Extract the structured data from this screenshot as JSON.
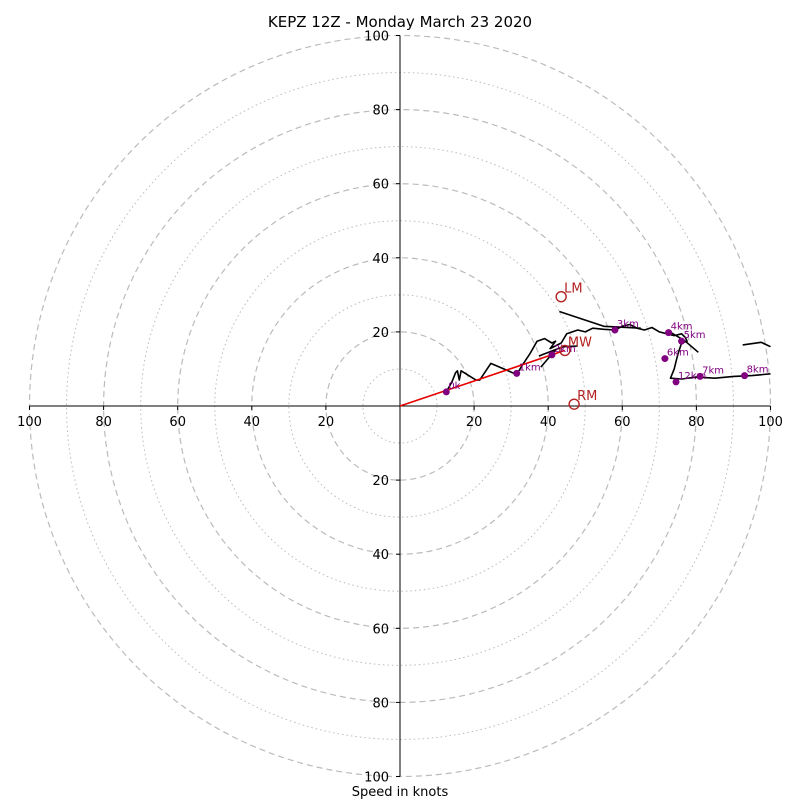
{
  "chart_data": {
    "type": "line",
    "title": "KEPZ 12Z - Monday March 23 2020",
    "xlabel": "Speed in knots",
    "ylabel": "",
    "xlim": [
      -100,
      100
    ],
    "ylim": [
      -100,
      100
    ],
    "ticks": {
      "x": [
        "100",
        "80",
        "60",
        "40",
        "20",
        "20",
        "40",
        "60",
        "80",
        "100"
      ],
      "y": [
        "100",
        "80",
        "60",
        "40",
        "20",
        "20",
        "40",
        "60",
        "80",
        "100"
      ]
    },
    "rings_major": [
      20,
      40,
      60,
      80,
      100
    ],
    "rings_minor": [
      10,
      30,
      50,
      70,
      90
    ],
    "grid": true,
    "hodograph": [
      [
        12.5,
        3.8
      ],
      [
        14.0,
        6.5
      ],
      [
        15.0,
        9.0
      ],
      [
        15.5,
        9.5
      ],
      [
        16.0,
        7.0
      ],
      [
        16.5,
        9.5
      ],
      [
        20.5,
        7.0
      ],
      [
        21.5,
        7.0
      ],
      [
        24.5,
        11.5
      ],
      [
        28.0,
        10.0
      ],
      [
        31.5,
        8.5
      ],
      [
        33.0,
        11.0
      ],
      [
        35.0,
        14.0
      ],
      [
        37.0,
        17.5
      ],
      [
        39.0,
        18.2
      ],
      [
        41.0,
        17.0
      ],
      [
        42.0,
        17.5
      ],
      [
        40.5,
        15.5
      ],
      [
        43.5,
        17.0
      ],
      [
        45.0,
        19.5
      ],
      [
        48.0,
        20.5
      ],
      [
        50.0,
        20.0
      ],
      [
        52.0,
        21.0
      ],
      [
        55.0,
        20.7
      ],
      [
        58.0,
        20.5
      ],
      [
        60.0,
        21.5
      ],
      [
        62.0,
        22.0
      ],
      [
        64.0,
        21.0
      ],
      [
        66.0,
        20.5
      ],
      [
        68.0,
        21.2
      ],
      [
        70.0,
        20.0
      ],
      [
        72.0,
        19.5
      ],
      [
        74.0,
        19.0
      ],
      [
        76.0,
        19.5
      ],
      [
        77.0,
        18.5
      ],
      [
        77.5,
        17.5
      ],
      [
        76.0,
        17.0
      ],
      [
        75.0,
        14.0
      ],
      [
        74.0,
        10.0
      ],
      [
        73.0,
        7.5
      ],
      [
        76.0,
        7.3
      ],
      [
        80.0,
        7.8
      ],
      [
        85.0,
        7.5
      ],
      [
        90.0,
        8.0
      ],
      [
        95.0,
        8.2
      ],
      [
        98.0,
        8.5
      ],
      [
        100.0,
        8.7
      ]
    ],
    "hodograph_extra": [
      [
        [
          92.5,
          16.5
        ],
        [
          97.5,
          17.2
        ],
        [
          100.0,
          16.0
        ]
      ],
      [
        [
          43.0,
          25.5
        ],
        [
          55.0,
          21.5
        ],
        [
          65.0,
          21.0
        ]
      ],
      [
        [
          37.5,
          13.5
        ],
        [
          44.0,
          16.0
        ],
        [
          48.0,
          16.2
        ]
      ],
      [
        [
          38.0,
          10.5
        ],
        [
          41.0,
          14.0
        ],
        [
          42.0,
          15.0
        ]
      ],
      [
        [
          72.0,
          20.5
        ],
        [
          77.0,
          17.5
        ],
        [
          80.5,
          14.5
        ]
      ]
    ],
    "mean_wind_vector": {
      "from": [
        0,
        0
      ],
      "to": [
        44.5,
        15.0
      ]
    },
    "height_markers": [
      {
        "label": "0k",
        "u": 12.5,
        "v": 3.8
      },
      {
        "label": "1km",
        "u": 31.5,
        "v": 8.8
      },
      {
        "label": "2km",
        "u": 41.0,
        "v": 13.8
      },
      {
        "label": "3km",
        "u": 58.0,
        "v": 20.5
      },
      {
        "label": "4km",
        "u": 72.5,
        "v": 19.8
      },
      {
        "label": "5km",
        "u": 76.0,
        "v": 17.5
      },
      {
        "label": "6km",
        "u": 71.5,
        "v": 12.8
      },
      {
        "label": "7km",
        "u": 81.0,
        "v": 8.0
      },
      {
        "label": "8km",
        "u": 93.0,
        "v": 8.2
      },
      {
        "label": "12km",
        "u": 74.5,
        "v": 6.5
      }
    ],
    "storm_motion": [
      {
        "label": "LM",
        "u": 43.5,
        "v": 29.5
      },
      {
        "label": "MW",
        "u": 44.5,
        "v": 15.0
      },
      {
        "label": "RM",
        "u": 47.0,
        "v": 0.5
      }
    ],
    "colors": {
      "hodograph": "#000000",
      "markers": "#800080",
      "storm": "#b22222",
      "mean_vector": "#e60000",
      "grid": "#bbbbbb",
      "axes": "#000000"
    }
  }
}
